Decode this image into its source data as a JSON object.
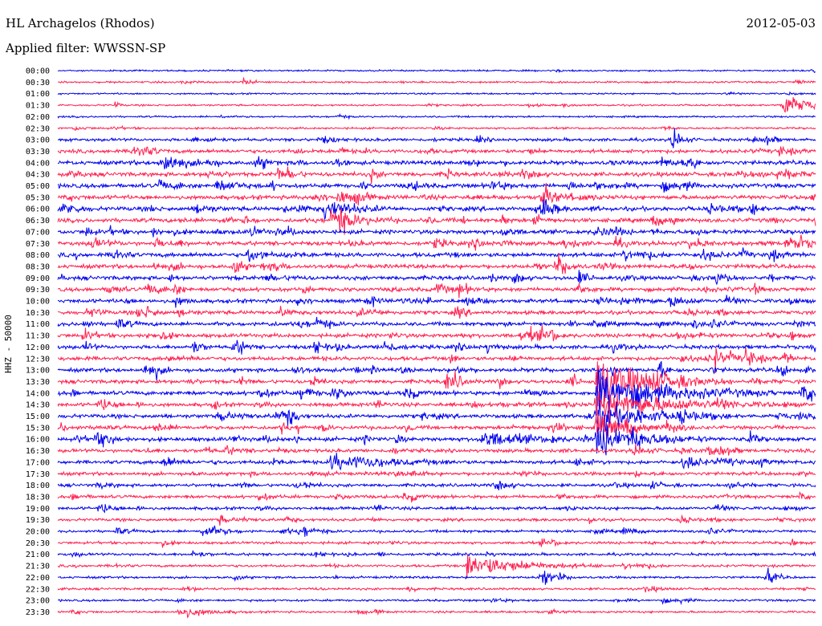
{
  "header": {
    "station": "HL Archagelos (Rhodos)",
    "date": "2012-05-03",
    "filter": "Applied filter: WWSSN-SP"
  },
  "chart_data": {
    "type": "line",
    "title": "HL Archagelos (Rhodos)",
    "ylabel": "HHZ - 50000",
    "xlabel": "",
    "rows": [
      "00:00",
      "00:30",
      "01:00",
      "01:30",
      "02:00",
      "02:30",
      "03:00",
      "03:30",
      "04:00",
      "04:30",
      "05:00",
      "05:30",
      "06:00",
      "06:30",
      "07:00",
      "07:30",
      "08:00",
      "08:30",
      "09:00",
      "09:30",
      "10:00",
      "10:30",
      "11:00",
      "11:30",
      "12:00",
      "12:30",
      "13:00",
      "13:30",
      "14:00",
      "14:30",
      "15:00",
      "15:30",
      "16:00",
      "16:30",
      "17:00",
      "17:30",
      "18:00",
      "18:30",
      "19:00",
      "19:30",
      "20:00",
      "20:30",
      "21:00",
      "21:30",
      "22:00",
      "22:30",
      "23:00",
      "23:30"
    ],
    "colors": [
      "#0000ee",
      "#ff2050"
    ],
    "activity": [
      0.1,
      0.15,
      0.1,
      0.15,
      0.15,
      0.2,
      0.5,
      0.7,
      0.8,
      0.85,
      0.85,
      0.85,
      0.85,
      0.8,
      0.85,
      0.85,
      0.85,
      0.8,
      0.8,
      0.75,
      0.75,
      0.75,
      0.75,
      0.75,
      0.75,
      0.75,
      0.75,
      0.75,
      0.8,
      0.7,
      0.75,
      0.7,
      0.8,
      0.65,
      0.7,
      0.6,
      0.55,
      0.55,
      0.5,
      0.45,
      0.4,
      0.4,
      0.4,
      0.35,
      0.3,
      0.3,
      0.25,
      0.25
    ],
    "events": [
      {
        "row": 1,
        "t": 0.245,
        "amp": 1.0,
        "dur": 0.01
      },
      {
        "row": 3,
        "t": 0.955,
        "amp": 3.2,
        "dur": 0.03
      },
      {
        "row": 3,
        "t": 0.075,
        "amp": 1.0,
        "dur": 0.005
      },
      {
        "row": 6,
        "t": 0.81,
        "amp": 3.5,
        "dur": 0.01
      },
      {
        "row": 8,
        "t": 0.14,
        "amp": 2.5,
        "dur": 0.02
      },
      {
        "row": 12,
        "t": 0.35,
        "amp": 3.0,
        "dur": 0.03
      },
      {
        "row": 13,
        "t": 0.36,
        "amp": 2.8,
        "dur": 0.03
      },
      {
        "row": 27,
        "t": 0.71,
        "amp": 6.0,
        "dur": 0.06
      },
      {
        "row": 28,
        "t": 0.71,
        "amp": 5.0,
        "dur": 0.08
      },
      {
        "row": 29,
        "t": 0.71,
        "amp": 4.0,
        "dur": 0.08
      },
      {
        "row": 30,
        "t": 0.71,
        "amp": 3.5,
        "dur": 0.06
      },
      {
        "row": 31,
        "t": 0.71,
        "amp": 3.0,
        "dur": 0.04
      },
      {
        "row": 32,
        "t": 0.71,
        "amp": 4.0,
        "dur": 0.05
      },
      {
        "row": 32,
        "t": 0.56,
        "amp": 2.0,
        "dur": 0.05
      },
      {
        "row": 34,
        "t": 0.36,
        "amp": 2.0,
        "dur": 0.06
      },
      {
        "row": 40,
        "t": 0.19,
        "amp": 2.0,
        "dur": 0.02
      },
      {
        "row": 43,
        "t": 0.54,
        "amp": 3.0,
        "dur": 0.06
      },
      {
        "row": 44,
        "t": 0.64,
        "amp": 2.5,
        "dur": 0.01
      },
      {
        "row": 44,
        "t": 0.935,
        "amp": 2.5,
        "dur": 0.01
      },
      {
        "row": 47,
        "t": 0.16,
        "amp": 1.5,
        "dur": 0.03
      }
    ]
  }
}
